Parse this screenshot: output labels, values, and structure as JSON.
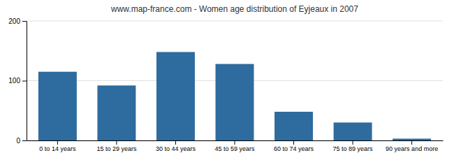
{
  "chart_data": {
    "type": "bar",
    "title": "www.map-france.com - Women age distribution of Eyjeaux in 2007",
    "categories": [
      "0 to 14 years",
      "15 to 29 years",
      "30 to 44 years",
      "45 to 59 years",
      "60 to 74 years",
      "75 to 89 years",
      "90 years and more"
    ],
    "values": [
      115,
      92,
      148,
      128,
      48,
      30,
      3
    ],
    "color": "#2e6b9e",
    "ylim": [
      0,
      200
    ],
    "yticks": [
      0,
      100,
      200
    ],
    "grid": true
  }
}
